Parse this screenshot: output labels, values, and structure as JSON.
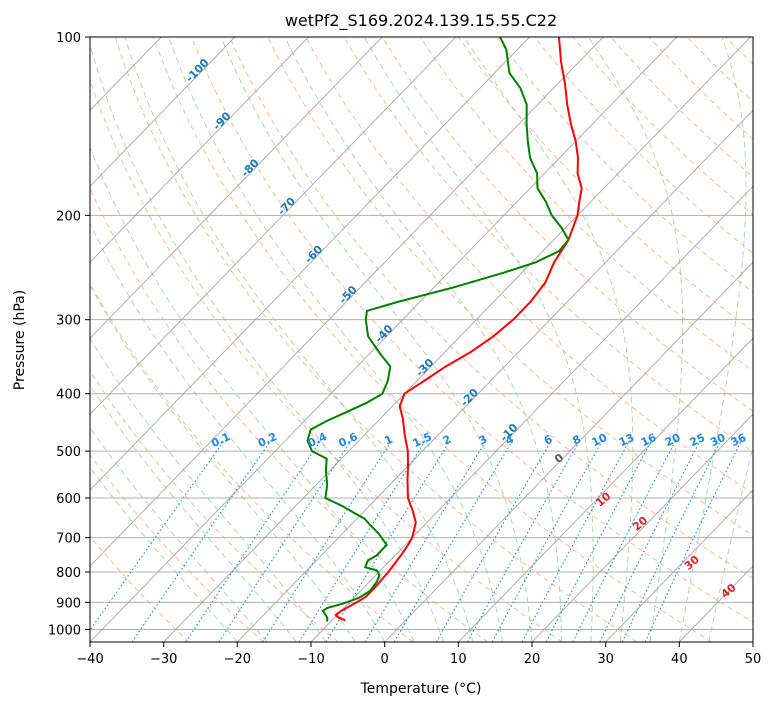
{
  "chart_data": {
    "type": "skew-t log-p",
    "title": "wetPf2_S169.2024.139.15.55.C22",
    "xlabel": "Temperature (°C)",
    "ylabel": "Pressure (hPa)",
    "xlim": [
      -40,
      50
    ],
    "ylim": [
      1050,
      100
    ],
    "y_scale": "log",
    "grid": true,
    "x_ticks": [
      -40,
      -30,
      -20,
      -10,
      0,
      10,
      20,
      30,
      40,
      50
    ],
    "y_ticks": [
      100,
      200,
      300,
      400,
      500,
      600,
      700,
      800,
      900,
      1000
    ],
    "isotherm_labels": [
      -100,
      -90,
      -80,
      -70,
      -60,
      -50,
      -40,
      -30,
      -20,
      -10
    ],
    "mixing_ratio_labels": [
      "0.1",
      "0.2",
      "0.4",
      "0.6",
      "1",
      "1.5",
      "2",
      "3",
      "4",
      "6",
      "8",
      "10",
      "13",
      "16",
      "20",
      "25",
      "30",
      "36"
    ],
    "moist_adiabat_labels": [
      0,
      10,
      20,
      30,
      40
    ],
    "colors": {
      "temperature": "#ff0000",
      "dewpoint": "#008000",
      "isotherm_label": "#1f77b4",
      "mixing_ratio": "#1e88e5",
      "moist_label": "#d62728",
      "dry_adiabat": "#ffa07a",
      "moist_adiabat": "#90c890"
    },
    "series": [
      {
        "key": "temperature",
        "points": [
          [
            -8.2,
            965
          ],
          [
            -9.5,
            955
          ],
          [
            -10.2,
            945
          ],
          [
            -10.0,
            930
          ],
          [
            -9.0,
            900
          ],
          [
            -8.5,
            880
          ],
          [
            -8.5,
            850
          ],
          [
            -8.7,
            800
          ],
          [
            -9.2,
            750
          ],
          [
            -9.6,
            720
          ],
          [
            -10.0,
            700
          ],
          [
            -11.5,
            660
          ],
          [
            -13.5,
            630
          ],
          [
            -15.8,
            600
          ],
          [
            -18.2,
            560
          ],
          [
            -20.0,
            530
          ],
          [
            -22.0,
            500
          ],
          [
            -24.5,
            470
          ],
          [
            -27.0,
            440
          ],
          [
            -29.0,
            420
          ],
          [
            -30.0,
            400
          ],
          [
            -29.0,
            380
          ],
          [
            -28.0,
            360
          ],
          [
            -26.5,
            340
          ],
          [
            -25.5,
            320
          ],
          [
            -25.0,
            300
          ],
          [
            -25.0,
            280
          ],
          [
            -25.5,
            260
          ],
          [
            -27.0,
            240
          ],
          [
            -28.0,
            220
          ],
          [
            -30.0,
            200
          ],
          [
            -31.5,
            190
          ],
          [
            -33.0,
            180
          ],
          [
            -35.5,
            170
          ],
          [
            -37.5,
            160
          ],
          [
            -40.0,
            150
          ],
          [
            -43.0,
            140
          ],
          [
            -46.0,
            130
          ],
          [
            -49.0,
            120
          ],
          [
            -52.5,
            110
          ],
          [
            -56.0,
            100
          ]
        ]
      },
      {
        "key": "dewpoint",
        "points": [
          [
            -10.5,
            970
          ],
          [
            -11.0,
            955
          ],
          [
            -12.5,
            930
          ],
          [
            -12.3,
            920
          ],
          [
            -10.8,
            905
          ],
          [
            -9.3,
            885
          ],
          [
            -8.7,
            860
          ],
          [
            -9.0,
            830
          ],
          [
            -9.5,
            810
          ],
          [
            -10.5,
            795
          ],
          [
            -12.5,
            785
          ],
          [
            -13.0,
            765
          ],
          [
            -12.5,
            750
          ],
          [
            -12.5,
            720
          ],
          [
            -15.0,
            690
          ],
          [
            -17.5,
            665
          ],
          [
            -19.0,
            650
          ],
          [
            -20.5,
            640
          ],
          [
            -23.5,
            620
          ],
          [
            -27.0,
            600
          ],
          [
            -28.5,
            570
          ],
          [
            -30.5,
            540
          ],
          [
            -32.0,
            515
          ],
          [
            -35.0,
            500
          ],
          [
            -37.0,
            480
          ],
          [
            -38.0,
            460
          ],
          [
            -37.0,
            445
          ],
          [
            -35.5,
            430
          ],
          [
            -34.0,
            415
          ],
          [
            -33.0,
            400
          ],
          [
            -34.0,
            380
          ],
          [
            -35.5,
            360
          ],
          [
            -39.0,
            340
          ],
          [
            -42.5,
            320
          ],
          [
            -45.0,
            300
          ],
          [
            -46.0,
            290
          ],
          [
            -43.0,
            280
          ],
          [
            -37.5,
            265
          ],
          [
            -32.5,
            250
          ],
          [
            -29.5,
            240
          ],
          [
            -27.8,
            230
          ],
          [
            -28.0,
            220
          ],
          [
            -30.5,
            210
          ],
          [
            -33.5,
            200
          ],
          [
            -36.0,
            190
          ],
          [
            -39.0,
            180
          ],
          [
            -41.0,
            170
          ],
          [
            -44.0,
            160
          ],
          [
            -46.5,
            150
          ],
          [
            -49.0,
            140
          ],
          [
            -51.5,
            130
          ],
          [
            -54.5,
            122
          ],
          [
            -58.0,
            115
          ],
          [
            -61.5,
            105
          ],
          [
            -64.0,
            100
          ]
        ]
      }
    ]
  }
}
